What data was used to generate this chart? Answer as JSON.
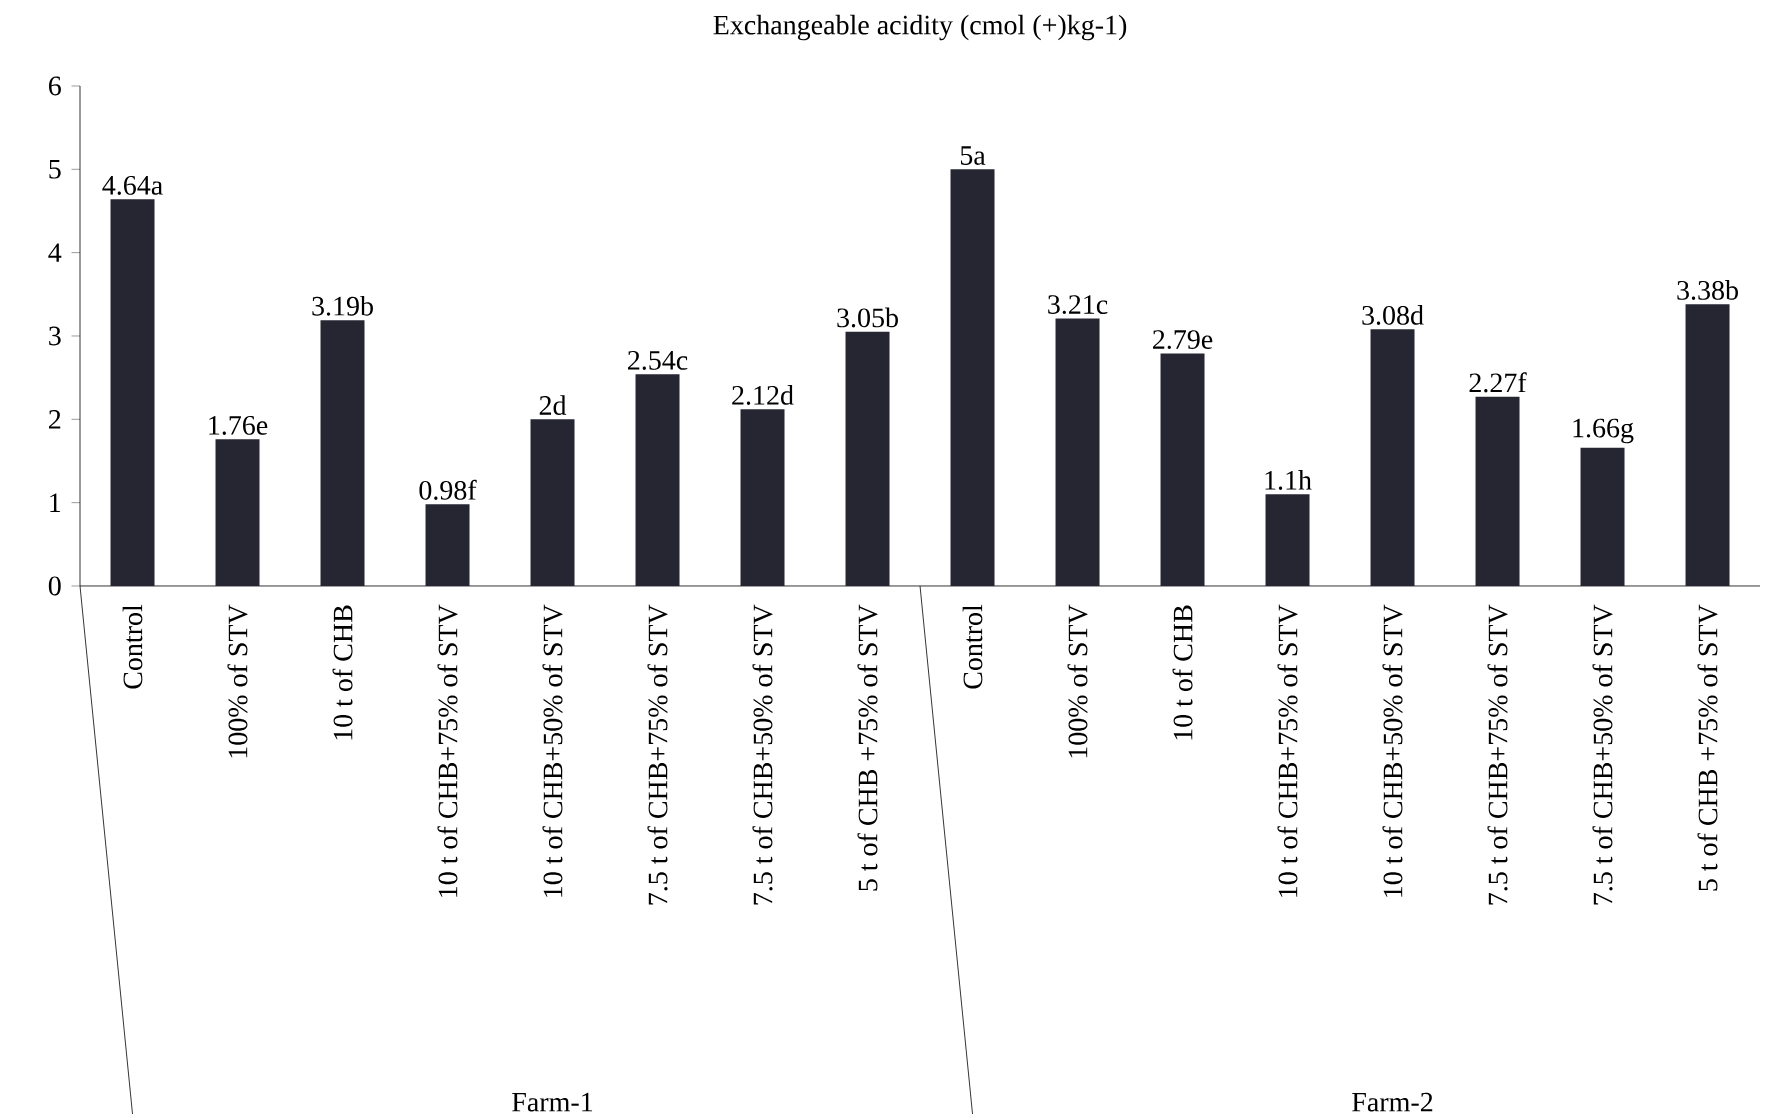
{
  "chart_data": {
    "type": "bar",
    "title": "Exchangeable acidity (cmol (+)kg-1)",
    "categories": [
      "Control",
      "100% of STV",
      "10 t of CHB",
      "10 t of CHB+75% of STV",
      "10 t of CHB+50% of STV",
      "7.5 t of CHB+75% of STV",
      "7.5 t of CHB+50% of STV",
      "5 t of CHB +75% of STV",
      "Control",
      "100% of STV",
      "10 t of CHB",
      "10 t of CHB+75% of STV",
      "10 t of CHB+50% of STV",
      "7.5 t of CHB+75% of STV",
      "7.5 t of CHB+50% of STV",
      "5 t of CHB +75% of STV"
    ],
    "values": [
      4.64,
      1.76,
      3.19,
      0.98,
      2,
      2.54,
      2.12,
      3.05,
      5,
      3.21,
      2.79,
      1.1,
      3.08,
      2.27,
      1.66,
      3.38
    ],
    "value_labels": [
      "4.64a",
      "1.76e",
      "3.19b",
      "0.98f",
      "2d",
      "2.54c",
      "2.12d",
      "3.05b",
      "5a",
      "3.21c",
      "2.79e",
      "1.1h",
      "3.08d",
      "2.27f",
      "1.66g",
      "3.38b"
    ],
    "color": "#262633",
    "ylim": [
      0,
      6
    ],
    "yticks": [
      0,
      1,
      2,
      3,
      4,
      5,
      6
    ],
    "annotations": [
      "Farm-1",
      "Farm-2"
    ]
  }
}
